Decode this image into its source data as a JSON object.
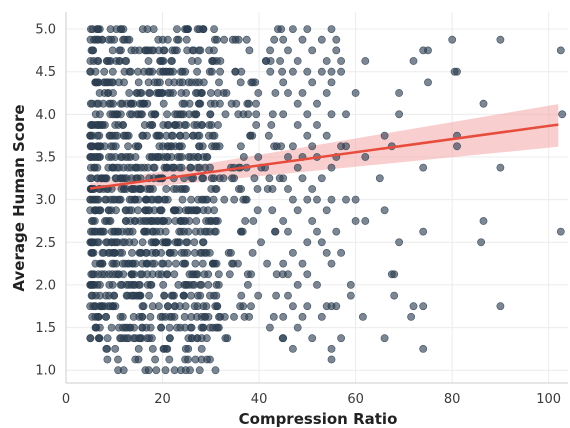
{
  "chart_data": {
    "type": "scatter",
    "title": "",
    "xlabel": "Compression Ratio",
    "ylabel": "Average Human Score",
    "xlim": [
      0,
      104
    ],
    "ylim": [
      0.85,
      5.2
    ],
    "x_ticks": [
      0,
      20,
      40,
      60,
      80,
      100
    ],
    "y_ticks": [
      1.0,
      1.5,
      2.0,
      2.5,
      3.0,
      3.5,
      4.0,
      4.5,
      5.0
    ],
    "grid": true,
    "colors": {
      "points": "#2c3e50",
      "regression": "#e74c3c",
      "confidence_band": "#f4a6a6"
    },
    "regression": {
      "x": [
        5,
        102
      ],
      "y": [
        3.13,
        3.88
      ]
    },
    "confidence_band": {
      "x": [
        5,
        102
      ],
      "lower": [
        3.08,
        3.62
      ],
      "upper": [
        3.19,
        4.12
      ]
    },
    "dense_region": {
      "description_x_range": [
        5,
        45
      ],
      "y_levels": [
        1.0,
        1.125,
        1.25,
        1.375,
        1.5,
        1.625,
        1.75,
        1.875,
        2.0,
        2.125,
        2.25,
        2.375,
        2.5,
        2.625,
        2.75,
        2.875,
        3.0,
        3.125,
        3.25,
        3.375,
        3.5,
        3.625,
        3.75,
        3.875,
        4.0,
        4.125,
        4.25,
        4.375,
        4.5,
        4.625,
        4.75,
        4.875,
        5.0
      ]
    },
    "points": [
      [
        102.5,
        4.75
      ],
      [
        102.5,
        2.625
      ],
      [
        102.8,
        4.0
      ],
      [
        90.0,
        4.875
      ],
      [
        90.0,
        3.375
      ],
      [
        90.0,
        1.75
      ],
      [
        86.5,
        4.125
      ],
      [
        86.5,
        2.75
      ],
      [
        86.0,
        2.5
      ],
      [
        81.0,
        4.5
      ],
      [
        80.5,
        4.5
      ],
      [
        80.0,
        4.875
      ],
      [
        81.0,
        3.75
      ],
      [
        81.0,
        3.625
      ],
      [
        75.0,
        4.75
      ],
      [
        74.0,
        4.75
      ],
      [
        75.0,
        4.375
      ],
      [
        74.0,
        3.375
      ],
      [
        74.0,
        2.625
      ],
      [
        74.0,
        1.75
      ],
      [
        74.0,
        1.25
      ],
      [
        72.0,
        4.625
      ],
      [
        72.0,
        1.75
      ],
      [
        71.5,
        1.625
      ],
      [
        69.0,
        4.25
      ],
      [
        69.0,
        4.0
      ],
      [
        69.0,
        2.5
      ],
      [
        67.5,
        3.625
      ],
      [
        67.5,
        2.125
      ],
      [
        68.0,
        2.125
      ],
      [
        68.0,
        1.875
      ],
      [
        66.0,
        3.75
      ],
      [
        66.0,
        2.875
      ],
      [
        66.0,
        1.375
      ],
      [
        65.0,
        3.25
      ],
      [
        62.0,
        4.625
      ],
      [
        62.0,
        3.5
      ],
      [
        62.0,
        2.75
      ],
      [
        61.5,
        1.625
      ],
      [
        60.0,
        4.25
      ],
      [
        60.0,
        3.0
      ],
      [
        60.0,
        2.75
      ],
      [
        59.0,
        2.0
      ],
      [
        59.0,
        1.875
      ],
      [
        58.0,
        4.0
      ],
      [
        58.0,
        3.625
      ],
      [
        58.0,
        3.0
      ],
      [
        57.0,
        4.625
      ],
      [
        57.0,
        4.5
      ],
      [
        57.0,
        3.625
      ],
      [
        57.0,
        2.375
      ],
      [
        57.0,
        1.375
      ],
      [
        56.0,
        4.875
      ],
      [
        56.0,
        4.75
      ],
      [
        56.0,
        3.5
      ],
      [
        56.0,
        2.625
      ],
      [
        56.0,
        1.75
      ],
      [
        55.0,
        5.0
      ],
      [
        55.0,
        4.5
      ],
      [
        55.0,
        4.375
      ],
      [
        55.0,
        4.0
      ],
      [
        55.0,
        3.375
      ],
      [
        55.0,
        3.0
      ],
      [
        55.0,
        2.25
      ],
      [
        55.0,
        1.75
      ],
      [
        55.0,
        1.25
      ],
      [
        55.0,
        1.125
      ],
      [
        54.0,
        4.625
      ],
      [
        54.0,
        4.25
      ],
      [
        54.0,
        3.75
      ],
      [
        54.0,
        2.875
      ],
      [
        54.0,
        2.375
      ],
      [
        54.0,
        1.75
      ],
      [
        53.0,
        4.875
      ],
      [
        53.0,
        4.5
      ],
      [
        53.0,
        3.25
      ],
      [
        53.0,
        2.5
      ],
      [
        53.0,
        1.625
      ],
      [
        52.0,
        4.125
      ],
      [
        52.0,
        3.875
      ],
      [
        52.0,
        3.5
      ],
      [
        52.0,
        3.0
      ],
      [
        52.0,
        2.625
      ],
      [
        52.0,
        2.0
      ],
      [
        51.0,
        4.75
      ],
      [
        51.0,
        4.375
      ],
      [
        51.0,
        3.625
      ],
      [
        51.0,
        3.125
      ],
      [
        51.0,
        2.75
      ],
      [
        51.0,
        1.375
      ],
      [
        50.0,
        5.0
      ],
      [
        50.0,
        4.5
      ],
      [
        50.0,
        4.0
      ],
      [
        50.0,
        3.75
      ],
      [
        50.0,
        3.0
      ],
      [
        50.0,
        2.5
      ],
      [
        50.0,
        2.125
      ],
      [
        50.0,
        1.75
      ],
      [
        49.0,
        4.875
      ],
      [
        49.0,
        4.25
      ],
      [
        49.0,
        3.5
      ],
      [
        49.0,
        3.25
      ],
      [
        49.0,
        2.25
      ],
      [
        49.0,
        1.625
      ],
      [
        48.0,
        4.625
      ],
      [
        48.0,
        4.125
      ],
      [
        48.0,
        3.875
      ],
      [
        48.0,
        3.375
      ],
      [
        48.0,
        2.875
      ],
      [
        48.0,
        2.0
      ],
      [
        48.0,
        1.5
      ],
      [
        47.0,
        5.0
      ],
      [
        47.0,
        4.5
      ],
      [
        47.0,
        3.625
      ],
      [
        47.0,
        3.0
      ],
      [
        47.0,
        2.375
      ],
      [
        47.0,
        1.75
      ],
      [
        47.0,
        1.25
      ],
      [
        46.0,
        4.75
      ],
      [
        46.0,
        4.25
      ],
      [
        46.0,
        3.5
      ],
      [
        46.0,
        3.125
      ],
      [
        46.0,
        2.625
      ],
      [
        46.0,
        2.125
      ],
      [
        46.0,
        1.875
      ],
      [
        45.0,
        4.875
      ],
      [
        45.0,
        4.375
      ],
      [
        45.0,
        4.0
      ],
      [
        45.0,
        3.25
      ],
      [
        45.0,
        2.75
      ],
      [
        45.0,
        2.25
      ],
      [
        45.0,
        1.625
      ],
      [
        45.0,
        1.375
      ]
    ]
  }
}
